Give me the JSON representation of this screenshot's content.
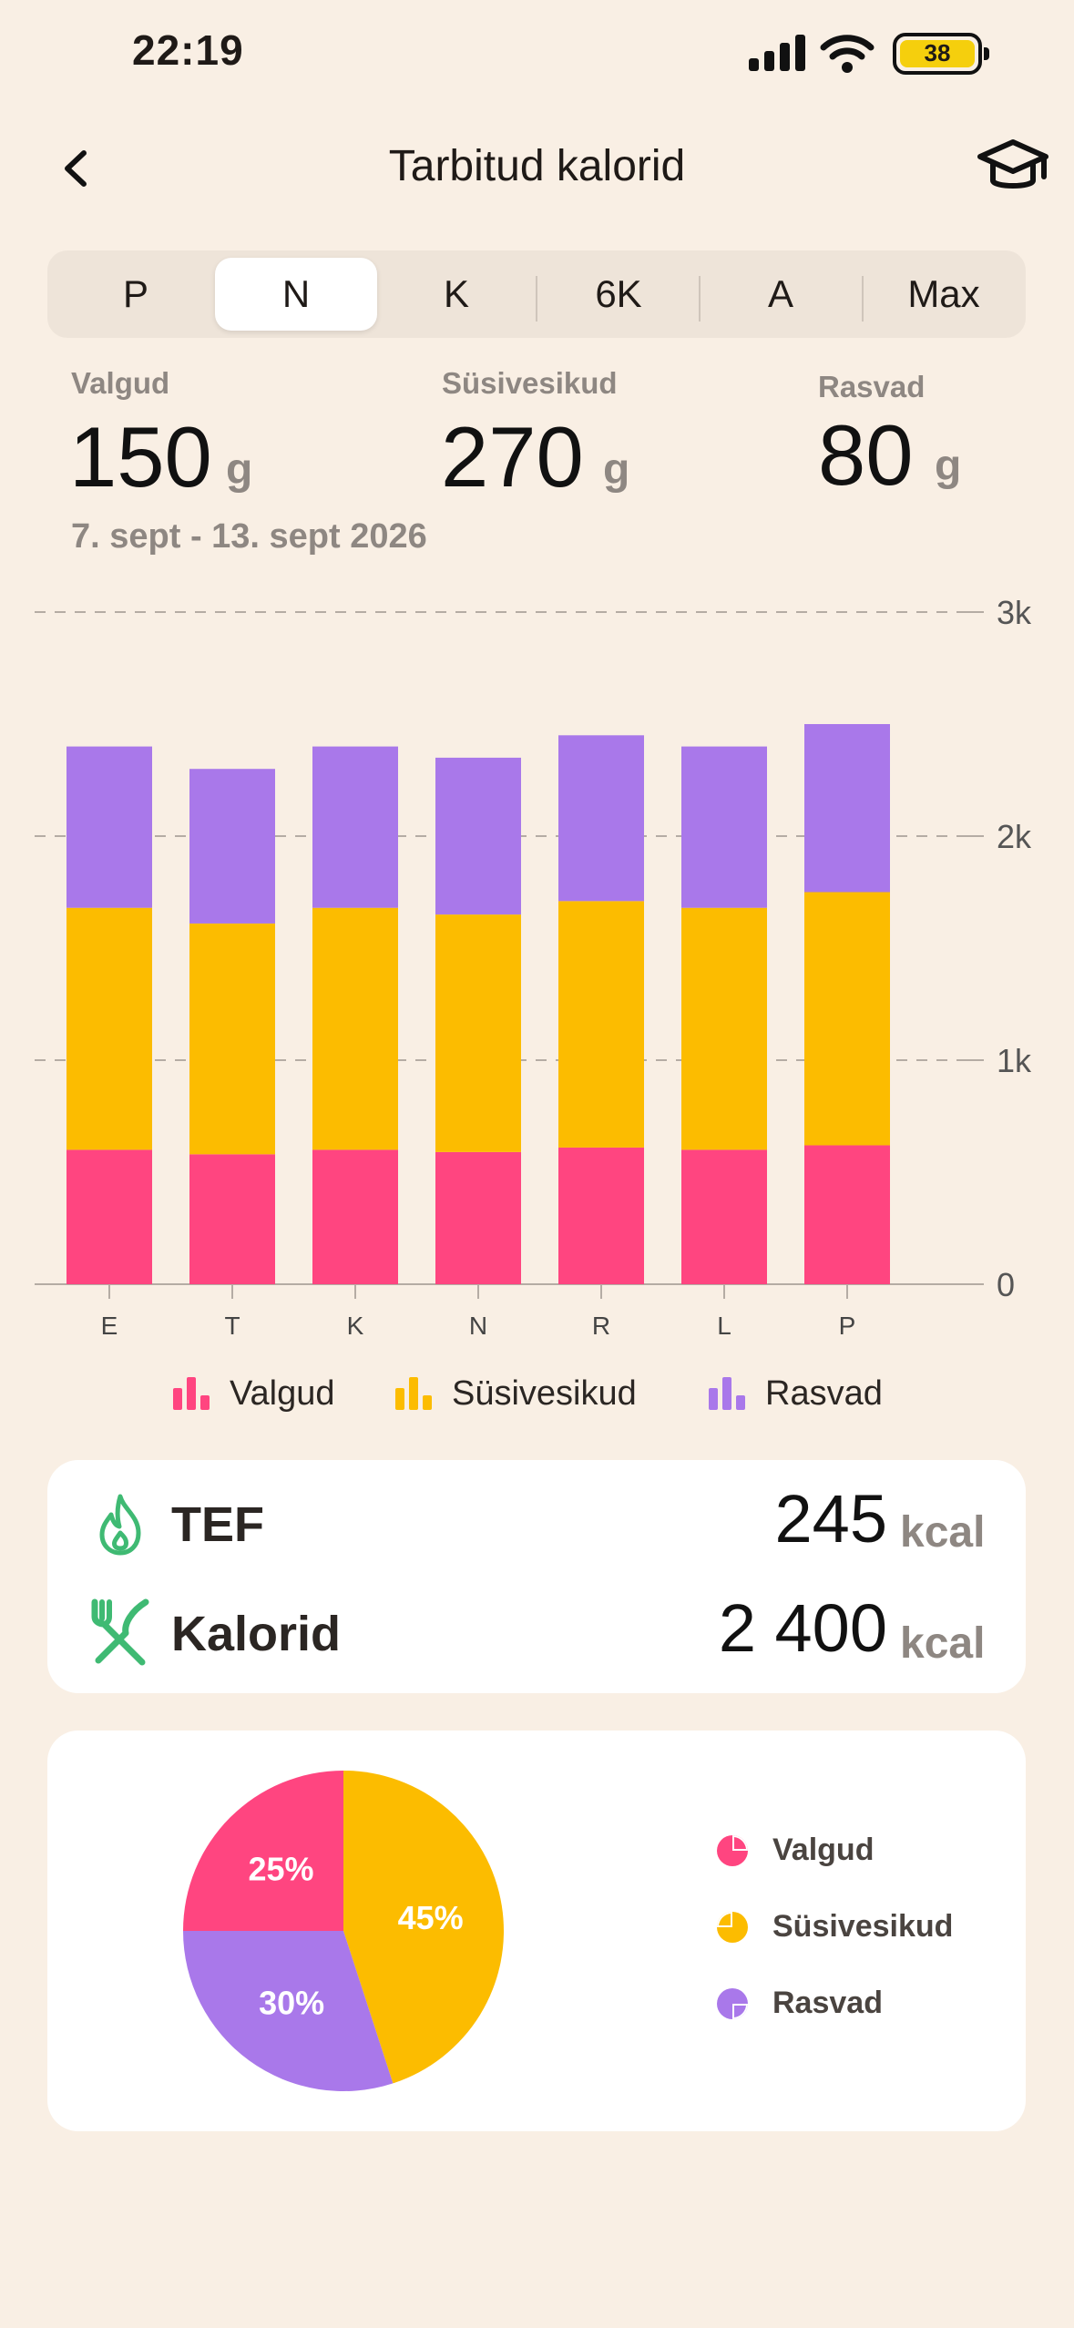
{
  "status_bar": {
    "time": "22:19",
    "battery": "38"
  },
  "header": {
    "title": "Tarbitud kalorid"
  },
  "segments": [
    {
      "label": "P",
      "active": false
    },
    {
      "label": "N",
      "active": true
    },
    {
      "label": "K",
      "active": false
    },
    {
      "label": "6K",
      "active": false
    },
    {
      "label": "A",
      "active": false
    },
    {
      "label": "Max",
      "active": false
    }
  ],
  "stats": [
    {
      "label": "Valgud",
      "value": "150",
      "unit": "g"
    },
    {
      "label": "Süsivesikud",
      "value": "270",
      "unit": "g"
    },
    {
      "label": "Rasvad",
      "value": "80",
      "unit": "g"
    }
  ],
  "date_range": "7. sept - 13. sept 2026",
  "colors": {
    "protein": "#ff4580",
    "carbs": "#fcbc00",
    "fat": "#a978ea",
    "accent_green": "#3fba73",
    "background": "#f9efe4"
  },
  "chart_data": {
    "type": "bar",
    "stacked": true,
    "categories": [
      "E",
      "T",
      "K",
      "N",
      "R",
      "L",
      "P"
    ],
    "series": [
      {
        "name": "Valgud",
        "color": "#ff4580",
        "values": [
          600,
          580,
          600,
          590,
          610,
          600,
          620
        ]
      },
      {
        "name": "Süsivesikud",
        "color": "#fcbc00",
        "values": [
          1080,
          1030,
          1080,
          1060,
          1100,
          1080,
          1130
        ]
      },
      {
        "name": "Rasvad",
        "color": "#a978ea",
        "values": [
          720,
          690,
          720,
          700,
          740,
          720,
          750
        ]
      }
    ],
    "yticks": [
      "0",
      "1k",
      "2k",
      "3k"
    ],
    "ylim": [
      0,
      3000
    ],
    "grid": true,
    "legend_position": "bottom"
  },
  "legend": [
    "Valgud",
    "Süsivesikud",
    "Rasvad"
  ],
  "summary": [
    {
      "label": "TEF",
      "value": "245",
      "unit": "kcal",
      "icon": "flame-icon"
    },
    {
      "label": "Kalorid",
      "value": "2 400",
      "unit": "kcal",
      "icon": "fork-knife-icon"
    }
  ],
  "pie_chart": {
    "type": "pie",
    "slices": [
      {
        "name": "Valgud",
        "value": 25,
        "label": "25%",
        "color": "#ff4580"
      },
      {
        "name": "Süsivesikud",
        "value": 45,
        "label": "45%",
        "color": "#fcbc00"
      },
      {
        "name": "Rasvad",
        "value": 30,
        "label": "30%",
        "color": "#a978ea"
      }
    ]
  }
}
